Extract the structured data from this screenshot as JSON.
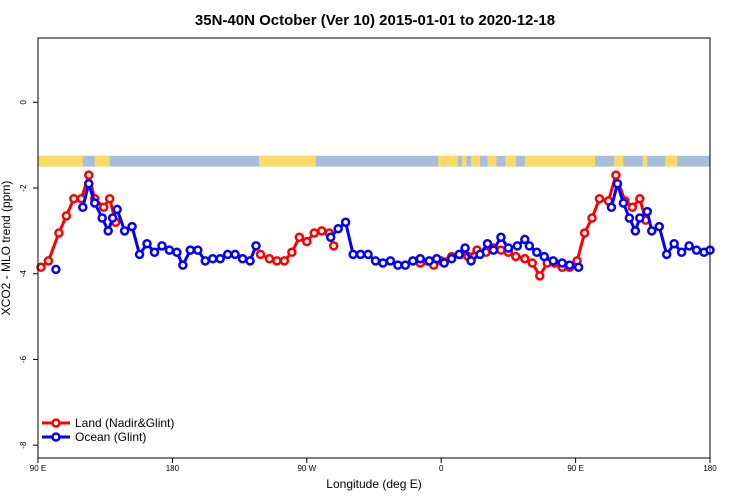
{
  "chart_data": {
    "type": "line",
    "title": "35N-40N October (Ver 10)   2015-01-01 to 2020-12-18",
    "xlabel": "Longitude (deg E)",
    "ylabel": "XCO2 - MLO trend (ppm)",
    "xlim": [
      90,
      540
    ],
    "ylim": [
      -8.3,
      1.5
    ],
    "x_ticks": [
      {
        "value": 90,
        "label": "90 E"
      },
      {
        "value": 180,
        "label": "180"
      },
      {
        "value": 270,
        "label": "90 W"
      },
      {
        "value": 360,
        "label": "0"
      },
      {
        "value": 450,
        "label": "90 E"
      },
      {
        "value": 540,
        "label": "180"
      }
    ],
    "y_ticks": [
      {
        "value": 0,
        "label": "0"
      },
      {
        "value": -2,
        "label": "-2"
      },
      {
        "value": -4,
        "label": "-4"
      },
      {
        "value": -6,
        "label": "-6"
      },
      {
        "value": -8,
        "label": "-8"
      }
    ],
    "legend_position": "bottom-left",
    "land_mask_band": {
      "y_range": [
        -1.5,
        -1.25
      ],
      "land_color": "#ffd966",
      "ocean_color": "#a4bedc",
      "land_segments": [
        [
          90,
          120
        ],
        [
          128,
          138
        ],
        [
          238,
          276
        ],
        [
          358,
          371
        ],
        [
          374,
          377
        ],
        [
          380,
          386
        ],
        [
          391,
          397
        ],
        [
          403,
          410
        ],
        [
          416,
          463
        ],
        [
          476,
          482
        ],
        [
          495,
          498
        ],
        [
          510,
          518
        ]
      ]
    },
    "series": [
      {
        "name": "Land (Nadir&Glint)",
        "color": "#ff0000",
        "points": [
          [
            92,
            -3.85
          ],
          [
            97,
            -3.7
          ],
          [
            104,
            -3.05
          ],
          [
            109,
            -2.65
          ],
          [
            114,
            -2.25
          ],
          [
            119,
            -2.25
          ],
          [
            124,
            -1.7
          ],
          [
            128,
            -2.25
          ],
          [
            134,
            -2.45
          ],
          [
            138,
            -2.25
          ],
          [
            142,
            -2.8
          ],
          [
            239,
            -3.55
          ],
          [
            245,
            -3.65
          ],
          [
            250,
            -3.7
          ],
          [
            255,
            -3.7
          ],
          [
            260,
            -3.5
          ],
          [
            265,
            -3.15
          ],
          [
            270,
            -3.25
          ],
          [
            275,
            -3.05
          ],
          [
            280,
            -3.0
          ],
          [
            285,
            -3.05
          ],
          [
            288,
            -3.35
          ],
          [
            346,
            -3.75
          ],
          [
            355,
            -3.8
          ],
          [
            360,
            -3.7
          ],
          [
            367,
            -3.6
          ],
          [
            373,
            -3.55
          ],
          [
            378,
            -3.6
          ],
          [
            384,
            -3.45
          ],
          [
            390,
            -3.5
          ],
          [
            395,
            -3.4
          ],
          [
            400,
            -3.45
          ],
          [
            405,
            -3.5
          ],
          [
            410,
            -3.6
          ],
          [
            416,
            -3.65
          ],
          [
            421,
            -3.75
          ],
          [
            426,
            -4.05
          ],
          [
            431,
            -3.75
          ],
          [
            436,
            -3.75
          ],
          [
            441,
            -3.85
          ],
          [
            446,
            -3.85
          ],
          [
            451,
            -3.7
          ],
          [
            456,
            -3.05
          ],
          [
            461,
            -2.7
          ],
          [
            466,
            -2.25
          ],
          [
            472,
            -2.3
          ],
          [
            477,
            -1.7
          ],
          [
            483,
            -2.3
          ],
          [
            488,
            -2.45
          ],
          [
            493,
            -2.25
          ],
          [
            497,
            -2.75
          ]
        ]
      },
      {
        "name": "Ocean (Glint)",
        "color": "#0000ff",
        "points": [
          [
            102,
            -3.9
          ],
          [
            120,
            -2.45
          ],
          [
            124,
            -1.9
          ],
          [
            128,
            -2.35
          ],
          [
            133,
            -2.7
          ],
          [
            137,
            -3.0
          ],
          [
            140,
            -2.7
          ],
          [
            143,
            -2.5
          ],
          [
            148,
            -3.0
          ],
          [
            153,
            -2.9
          ],
          [
            158,
            -3.55
          ],
          [
            163,
            -3.3
          ],
          [
            168,
            -3.5
          ],
          [
            173,
            -3.35
          ],
          [
            178,
            -3.45
          ],
          [
            183,
            -3.5
          ],
          [
            187,
            -3.8
          ],
          [
            192,
            -3.45
          ],
          [
            197,
            -3.45
          ],
          [
            202,
            -3.7
          ],
          [
            207,
            -3.65
          ],
          [
            212,
            -3.65
          ],
          [
            217,
            -3.55
          ],
          [
            222,
            -3.55
          ],
          [
            227,
            -3.65
          ],
          [
            232,
            -3.7
          ],
          [
            236,
            -3.35
          ],
          [
            286,
            -3.15
          ],
          [
            291,
            -2.95
          ],
          [
            296,
            -2.8
          ],
          [
            301,
            -3.55
          ],
          [
            306,
            -3.55
          ],
          [
            311,
            -3.55
          ],
          [
            316,
            -3.7
          ],
          [
            321,
            -3.75
          ],
          [
            326,
            -3.7
          ],
          [
            331,
            -3.8
          ],
          [
            336,
            -3.8
          ],
          [
            341,
            -3.7
          ],
          [
            346,
            -3.65
          ],
          [
            352,
            -3.7
          ],
          [
            357,
            -3.65
          ],
          [
            362,
            -3.75
          ],
          [
            367,
            -3.65
          ],
          [
            372,
            -3.55
          ],
          [
            376,
            -3.4
          ],
          [
            380,
            -3.7
          ],
          [
            386,
            -3.55
          ],
          [
            391,
            -3.3
          ],
          [
            395,
            -3.45
          ],
          [
            400,
            -3.15
          ],
          [
            405,
            -3.4
          ],
          [
            411,
            -3.35
          ],
          [
            416,
            -3.2
          ],
          [
            419,
            -3.35
          ],
          [
            424,
            -3.5
          ],
          [
            429,
            -3.6
          ],
          [
            435,
            -3.7
          ],
          [
            441,
            -3.75
          ],
          [
            446,
            -3.8
          ],
          [
            452,
            -3.85
          ],
          [
            474,
            -2.45
          ],
          [
            478,
            -1.9
          ],
          [
            482,
            -2.35
          ],
          [
            486,
            -2.7
          ],
          [
            490,
            -3.0
          ],
          [
            493,
            -2.7
          ],
          [
            498,
            -2.55
          ],
          [
            501,
            -3.0
          ],
          [
            506,
            -2.9
          ],
          [
            511,
            -3.55
          ],
          [
            516,
            -3.3
          ],
          [
            521,
            -3.5
          ],
          [
            526,
            -3.35
          ],
          [
            531,
            -3.45
          ],
          [
            536,
            -3.5
          ],
          [
            540,
            -3.45
          ]
        ]
      }
    ]
  }
}
